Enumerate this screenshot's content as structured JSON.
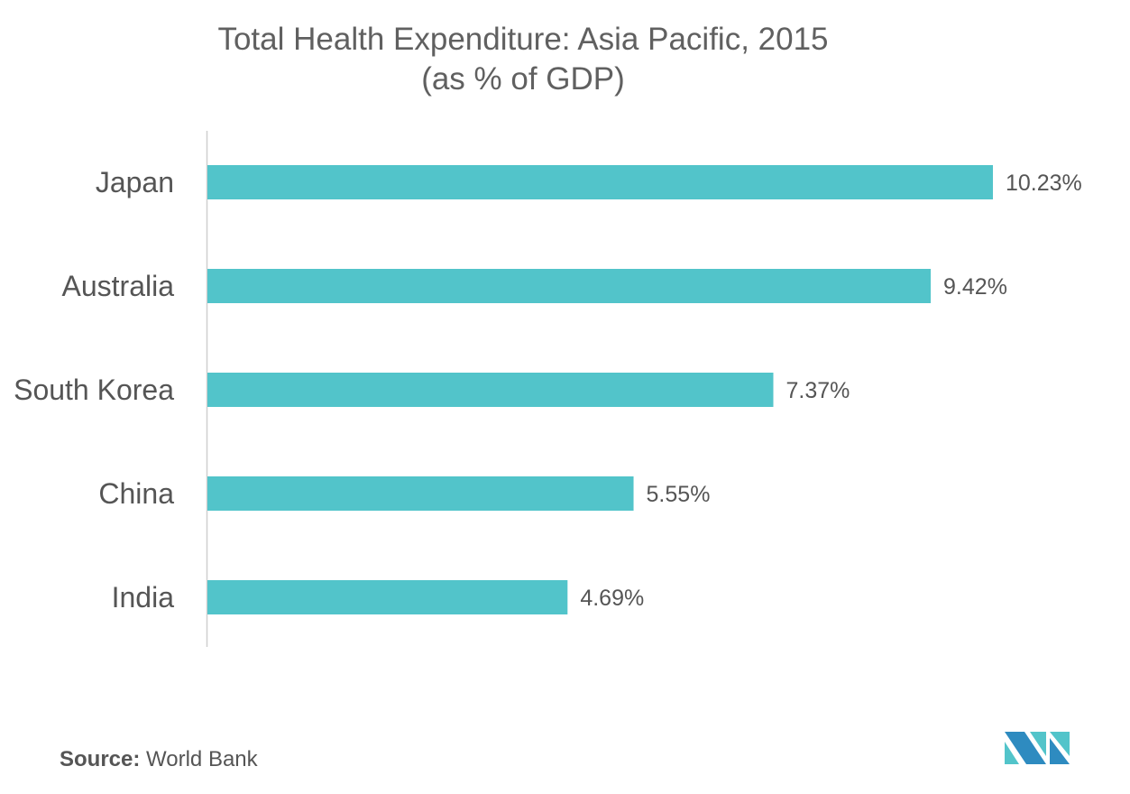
{
  "chart_data": {
    "type": "bar",
    "orientation": "horizontal",
    "title": "Total Health Expenditure: Asia Pacific, 2015",
    "subtitle": "(as % of GDP)",
    "categories": [
      "Japan",
      "Australia",
      "South Korea",
      "China",
      "India"
    ],
    "values": [
      10.23,
      9.42,
      7.37,
      5.55,
      4.69
    ],
    "data_labels": [
      "10.23%",
      "9.42%",
      "7.37%",
      "5.55%",
      "4.69%"
    ],
    "xlabel": "",
    "ylabel": "",
    "xlim": [
      0,
      10.23
    ],
    "grid": false,
    "bar_color": "#52C4CA"
  },
  "source": {
    "label": "Source:",
    "text": "World Bank"
  },
  "logo": {
    "colors": [
      "#2E8BC0",
      "#52C4CA"
    ]
  }
}
